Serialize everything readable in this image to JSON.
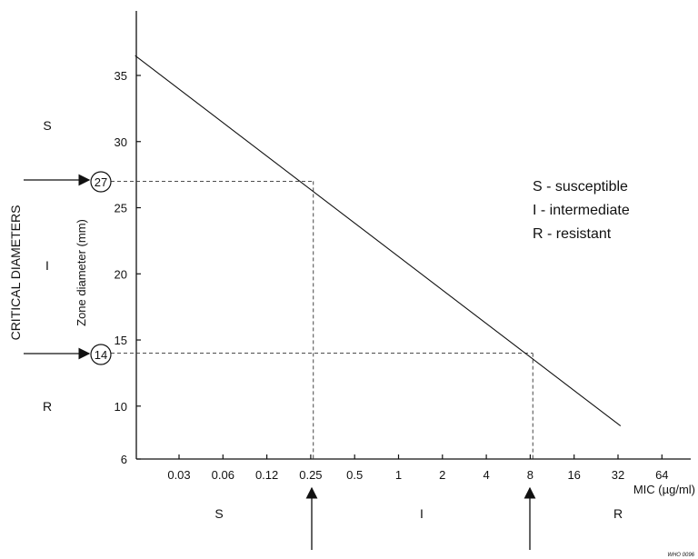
{
  "chart_data": {
    "type": "line",
    "xlabel": "MIC (µg/ml)",
    "ylabel": "Zone diameter (mm)",
    "x_scale": "log2",
    "x_ticks": [
      "0.03",
      "0.06",
      "0.12",
      "0.25",
      "0.5",
      "1",
      "2",
      "4",
      "8",
      "16",
      "32",
      "64"
    ],
    "y_ticks": [
      "6",
      "10",
      "15",
      "20",
      "25",
      "30",
      "35"
    ],
    "ylim": [
      6,
      40
    ],
    "series": [
      {
        "x": [
          0.015,
          32
        ],
        "y": [
          36.5,
          8.5
        ]
      }
    ],
    "critical_diameters": {
      "label": "CRITICAL DIAMETERS",
      "upper": {
        "value": "27",
        "mic": "0.25"
      },
      "lower": {
        "value": "14",
        "mic": "8"
      }
    },
    "y_zones": [
      "S",
      "I",
      "R"
    ],
    "x_zones": [
      "S",
      "I",
      "R"
    ],
    "legend": [
      "S - susceptible",
      "I - intermediate",
      "R - resistant"
    ],
    "footnote": "WHO 0096",
    "grid": false
  }
}
